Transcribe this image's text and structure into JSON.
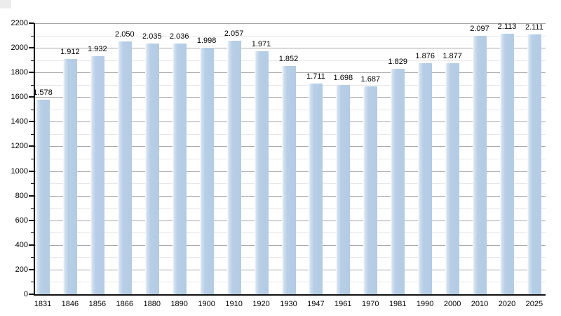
{
  "chart_data": {
    "type": "bar",
    "title": "",
    "xlabel": "",
    "ylabel": "",
    "categories": [
      "1831",
      "1846",
      "1856",
      "1866",
      "1880",
      "1890",
      "1900",
      "1910",
      "1920",
      "1930",
      "1947",
      "1961",
      "1970",
      "1981",
      "1990",
      "2000",
      "2010",
      "2020",
      "2025"
    ],
    "values": [
      1578,
      1912,
      1932,
      2050,
      2035,
      2036,
      1998,
      2057,
      1971,
      1852,
      1711,
      1698,
      1687,
      1829,
      1876,
      1877,
      2097,
      2113,
      2111
    ],
    "value_labels": [
      "1.578",
      "1.912",
      "1.932",
      "2.050",
      "2.035",
      "2.036",
      "1.998",
      "2.057",
      "1.971",
      "1.852",
      "1.711",
      "1.698",
      "1.687",
      "1.829",
      "1.876",
      "1.877",
      "2.097",
      "2.113",
      "2.111"
    ],
    "ylim": [
      0,
      2200
    ],
    "y_major_step": 200,
    "y_minor_step": 100,
    "grid": true,
    "legend": false,
    "colors": {
      "bar_fill": "#b3cbe4",
      "bar_fill_highlight": "#ffffff",
      "major_grid": "#a8a8a8",
      "minor_grid": "#e7e7e7",
      "axis": "#111111",
      "text": "#000000",
      "background": "#ffffff"
    }
  }
}
